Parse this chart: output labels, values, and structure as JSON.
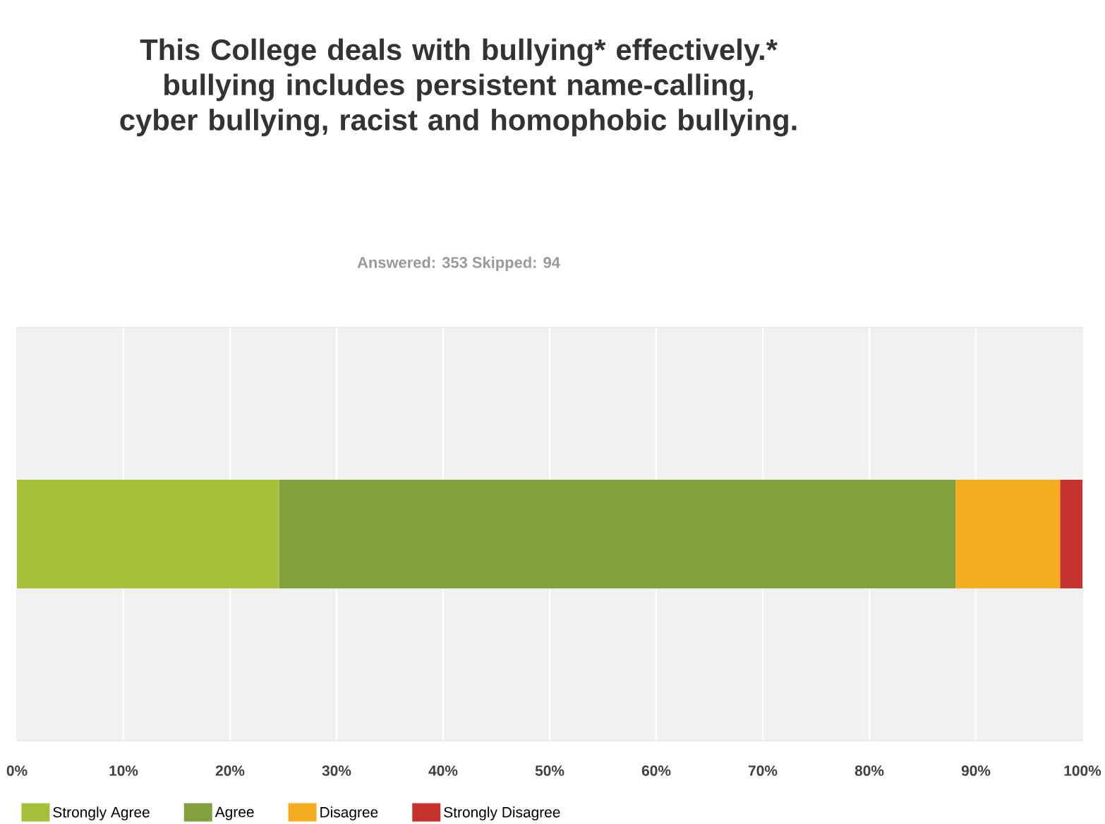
{
  "chart_data": {
    "type": "bar",
    "orientation": "horizontal",
    "stacked": true,
    "title": "This College deals with bullying* effectively.* bullying includes persistent name-calling, cyber bullying, racist and homophobic bullying.",
    "subtitle": "Answered: 353    Skipped: 94",
    "categories": [
      null
    ],
    "series": [
      {
        "name": "Strongly Agree",
        "color": "#a6c03c",
        "values": [
          24.6
        ]
      },
      {
        "name": "Agree",
        "color": "#84a03e",
        "values": [
          63.5
        ]
      },
      {
        "name": "Disagree",
        "color": "#f6ae20",
        "values": [
          9.8
        ]
      },
      {
        "name": "Strongly Disagree",
        "color": "#c7332c",
        "values": [
          2.1
        ]
      }
    ],
    "xlim": [
      0,
      100
    ],
    "xticks": [
      {
        "value": 0,
        "label": "0%"
      },
      {
        "value": 10,
        "label": "10%"
      },
      {
        "value": 20,
        "label": "20%"
      },
      {
        "value": 30,
        "label": "30%"
      },
      {
        "value": 40,
        "label": "40%"
      },
      {
        "value": 50,
        "label": "50%"
      },
      {
        "value": 60,
        "label": "60%"
      },
      {
        "value": 70,
        "label": "70%"
      },
      {
        "value": 80,
        "label": "80%"
      },
      {
        "value": 90,
        "label": "90%"
      },
      {
        "value": 100,
        "label": "100%"
      }
    ],
    "grid": "x",
    "legend": "bottom"
  }
}
